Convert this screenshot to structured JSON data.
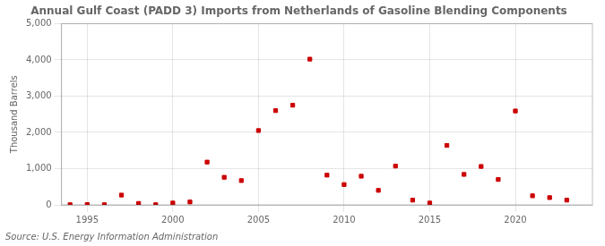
{
  "chart_data": {
    "type": "scatter",
    "title": "Annual Gulf Coast (PADD 3) Imports from Netherlands of Gasoline Blending Components",
    "ylabel": "Thousand Barrels",
    "annotations": [
      "Source: U.S. Energy Information Administration"
    ],
    "x": [
      1994,
      1995,
      1996,
      1997,
      1998,
      1999,
      2000,
      2001,
      2002,
      2003,
      2004,
      2005,
      2006,
      2007,
      2008,
      2009,
      2010,
      2011,
      2012,
      2013,
      2014,
      2015,
      2016,
      2017,
      2018,
      2019,
      2020,
      2021,
      2022,
      2023
    ],
    "values": [
      5,
      10,
      5,
      270,
      40,
      5,
      50,
      80,
      1180,
      760,
      670,
      2050,
      2600,
      2750,
      4020,
      820,
      560,
      790,
      400,
      1070,
      130,
      50,
      1640,
      840,
      1060,
      700,
      2590,
      250,
      200,
      130
    ],
    "color": "#cc0000",
    "marker": "square",
    "xlim": [
      1993.5,
      2024.5
    ],
    "xticks": [
      1995,
      2000,
      2005,
      2010,
      2015,
      2020
    ],
    "ylim": [
      0,
      5000
    ],
    "yticks": [
      0,
      {
        "value": 1000,
        "label": "1,000"
      },
      {
        "value": 2000,
        "label": "2,000"
      },
      {
        "value": 3000,
        "label": "3,000"
      },
      {
        "value": 4000,
        "label": "4,000"
      },
      {
        "value": 5000,
        "label": "5,000"
      }
    ],
    "grid": true
  }
}
